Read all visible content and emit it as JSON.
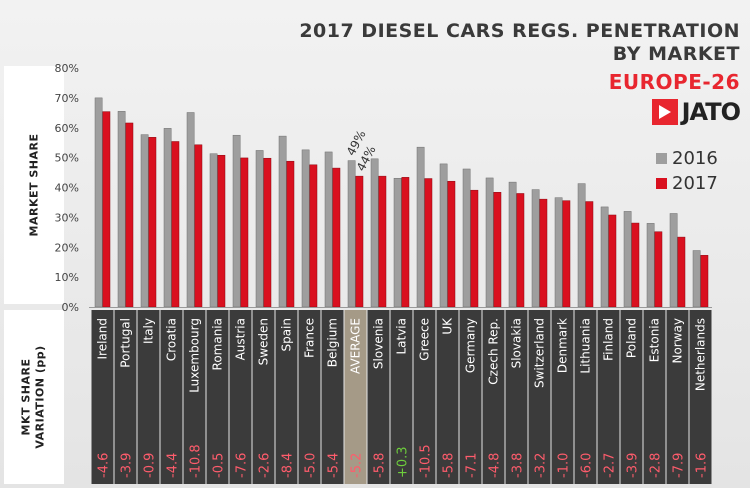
{
  "side_labels": {
    "top": "MARKET SHARE",
    "bottom_line1": "MKT SHARE",
    "bottom_line2": "VARIATION (pp)"
  },
  "title_line1": "2017 DIESEL CARS REGS. PENETRATION",
  "title_line2": "BY MARKET",
  "subtitle": "EUROPE-26",
  "logo_text": "JATO",
  "legend": [
    "2016",
    "2017"
  ],
  "colors": {
    "series_2016": "#9e9e9e",
    "series_2017": "#d9101f",
    "panel": "#3b3b3b",
    "average_panel": "#a59a87",
    "negative": "#ff5c6c",
    "positive": "#6ecf3c",
    "logo_red": "#e8262f"
  },
  "chart_data": {
    "type": "bar",
    "title": "2017 DIESEL CARS REGS. PENETRATION BY MARKET",
    "subtitle": "EUROPE-26",
    "ylabel": "MARKET SHARE",
    "ylim": [
      0,
      80
    ],
    "y_ticks": [
      "0%",
      "10%",
      "20%",
      "30%",
      "40%",
      "50%",
      "60%",
      "70%",
      "80%"
    ],
    "grid": false,
    "legend_position": "right",
    "categories": [
      "Ireland",
      "Portugal",
      "Italy",
      "Croatia",
      "Luxembourg",
      "Romania",
      "Austria",
      "Sweden",
      "Spain",
      "France",
      "Belgium",
      "AVERAGE",
      "Slovenia",
      "Latvia",
      "Greece",
      "UK",
      "Germany",
      "Czech Rep.",
      "Slovakia",
      "Switzerland",
      "Denmark",
      "Lithuania",
      "Finland",
      "Poland",
      "Estonia",
      "Norway",
      "Netherlands"
    ],
    "series": [
      {
        "name": "2016",
        "values": [
          70.0,
          65.5,
          57.7,
          59.8,
          65.1,
          51.3,
          57.5,
          52.4,
          57.2,
          52.6,
          51.9,
          49.0,
          49.6,
          43.1,
          53.5,
          47.9,
          46.2,
          43.2,
          41.8,
          39.3,
          36.6,
          41.3,
          33.5,
          32.0,
          28.0,
          31.3,
          18.9
        ]
      },
      {
        "name": "2017",
        "values": [
          65.4,
          61.6,
          56.8,
          55.4,
          54.3,
          50.8,
          49.9,
          49.8,
          48.8,
          47.6,
          46.5,
          43.8,
          43.8,
          43.4,
          43.0,
          42.1,
          39.1,
          38.4,
          38.0,
          36.1,
          35.6,
          35.3,
          30.8,
          28.1,
          25.2,
          23.4,
          17.3
        ]
      }
    ],
    "variation_pp": [
      "-4.6",
      "-3.9",
      "-0.9",
      "-4.4",
      "-10.8",
      "-0.5",
      "-7.6",
      "-2.6",
      "-8.4",
      "-5.0",
      "-5.4",
      "-5.2",
      "-5.8",
      "+0.3",
      "-10.5",
      "-5.8",
      "-7.1",
      "-4.8",
      "-3.8",
      "-3.2",
      "-1.0",
      "-6.0",
      "-2.7",
      "-3.9",
      "-2.8",
      "-7.9",
      "-1.6"
    ],
    "annotations": [
      {
        "category": "AVERAGE",
        "series": "2016",
        "text": "49%"
      },
      {
        "category": "AVERAGE",
        "series": "2017",
        "text": "44%"
      }
    ]
  }
}
